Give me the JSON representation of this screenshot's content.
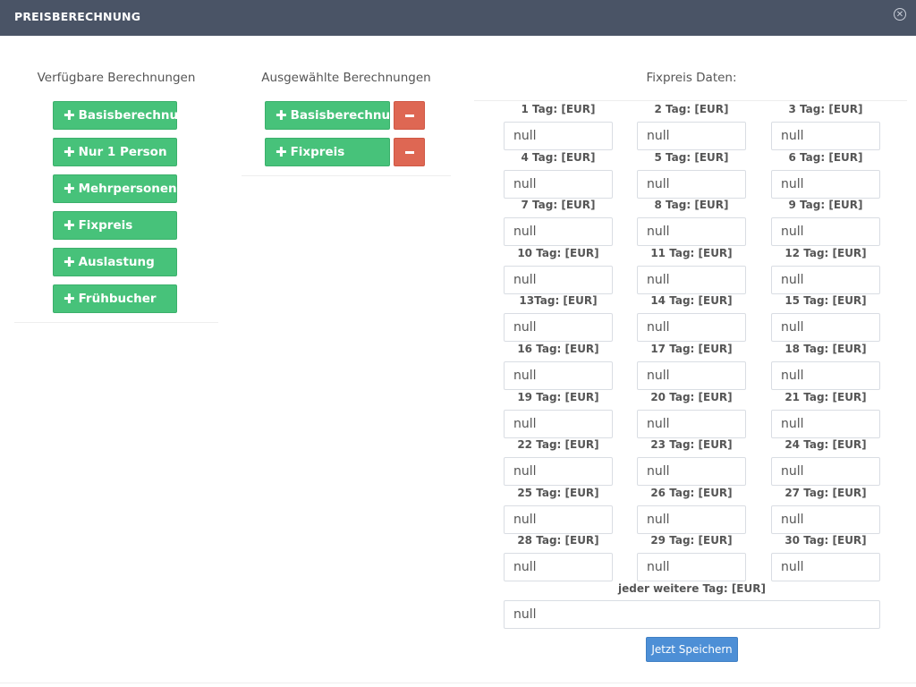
{
  "header": {
    "title": "PREISBERECHNUNG",
    "close_symbol": "✕"
  },
  "available": {
    "title": "Verfügbare Berechnungen",
    "items": [
      {
        "label": "Basisberechnung"
      },
      {
        "label": "Nur 1 Person"
      },
      {
        "label": "Mehrpersonen"
      },
      {
        "label": "Fixpreis"
      },
      {
        "label": "Auslastung"
      },
      {
        "label": "Frühbucher"
      }
    ]
  },
  "selected": {
    "title": "Ausgewählte Berechnungen",
    "items": [
      {
        "label": "Basisberechnung"
      },
      {
        "label": "Fixpreis"
      }
    ]
  },
  "fixpreis": {
    "title": "Fixpreis Daten:",
    "fields": [
      {
        "label": "1 Tag: [EUR]",
        "value": "null"
      },
      {
        "label": "2 Tag: [EUR]",
        "value": "null"
      },
      {
        "label": "3 Tag: [EUR]",
        "value": "null"
      },
      {
        "label": "4 Tag: [EUR]",
        "value": "null"
      },
      {
        "label": "5 Tag: [EUR]",
        "value": "null"
      },
      {
        "label": "6 Tag: [EUR]",
        "value": "null"
      },
      {
        "label": "7 Tag: [EUR]",
        "value": "null"
      },
      {
        "label": "8 Tag: [EUR]",
        "value": "null"
      },
      {
        "label": "9 Tag: [EUR]",
        "value": "null"
      },
      {
        "label": "10 Tag: [EUR]",
        "value": "null"
      },
      {
        "label": "11 Tag: [EUR]",
        "value": "null"
      },
      {
        "label": "12 Tag: [EUR]",
        "value": "null"
      },
      {
        "label": "13Tag: [EUR]",
        "value": "null"
      },
      {
        "label": "14 Tag: [EUR]",
        "value": "null"
      },
      {
        "label": "15 Tag: [EUR]",
        "value": "null"
      },
      {
        "label": "16 Tag: [EUR]",
        "value": "null"
      },
      {
        "label": "17 Tag: [EUR]",
        "value": "null"
      },
      {
        "label": "18 Tag: [EUR]",
        "value": "null"
      },
      {
        "label": "19 Tag: [EUR]",
        "value": "null"
      },
      {
        "label": "20 Tag: [EUR]",
        "value": "null"
      },
      {
        "label": "21 Tag: [EUR]",
        "value": "null"
      },
      {
        "label": "22 Tag: [EUR]",
        "value": "null"
      },
      {
        "label": "23 Tag: [EUR]",
        "value": "null"
      },
      {
        "label": "24 Tag: [EUR]",
        "value": "null"
      },
      {
        "label": "25 Tag: [EUR]",
        "value": "null"
      },
      {
        "label": "26 Tag: [EUR]",
        "value": "null"
      },
      {
        "label": "27 Tag: [EUR]",
        "value": "null"
      },
      {
        "label": "28 Tag: [EUR]",
        "value": "null"
      },
      {
        "label": "29 Tag: [EUR]",
        "value": "null"
      },
      {
        "label": "30 Tag: [EUR]",
        "value": "null"
      }
    ],
    "extra": {
      "label": "jeder weitere Tag: [EUR]",
      "value": "null"
    },
    "save_label": "Jetzt Speichern"
  },
  "colors": {
    "header_bg": "#4a5466",
    "add_button": "#47c27a",
    "remove_button": "#de6753",
    "save_button": "#4d8fd6"
  },
  "icons": {
    "add": "plus-icon",
    "remove": "minus-icon",
    "close": "close-icon"
  }
}
